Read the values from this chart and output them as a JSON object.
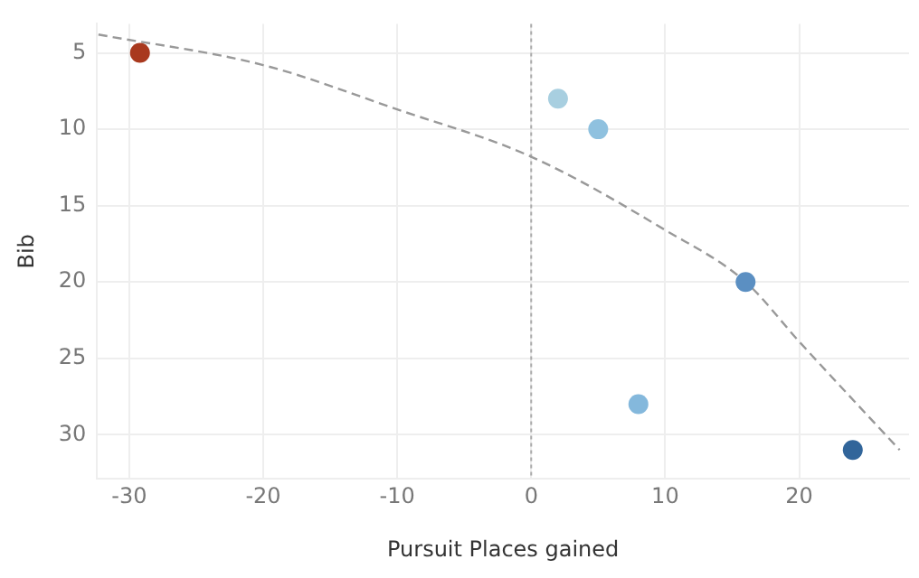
{
  "chart_data": {
    "type": "scatter",
    "xlabel": "Pursuit Places gained",
    "ylabel": "Bib",
    "xlim": [
      -32.4,
      28.2
    ],
    "xticks": [
      -30,
      -20,
      -10,
      0,
      10,
      20
    ],
    "ylim": [
      32.9,
      3.1
    ],
    "yticks": [
      5,
      10,
      15,
      20,
      25,
      30
    ],
    "grid": true,
    "legend": false,
    "marker": "circle",
    "series": [
      {
        "type": "line",
        "color": "#999999",
        "line_style": "dashed",
        "marker": "none",
        "x": [
          -32.3,
          -20,
          -10,
          0,
          10,
          16,
          20,
          27.5
        ],
        "values": [
          3.8,
          5.8,
          8.7,
          11.8,
          16.6,
          20,
          23.9,
          31
        ]
      },
      {
        "x": [
          -29.2,
          2,
          5,
          16,
          8,
          24
        ],
        "values": [
          5,
          8,
          10,
          20,
          28,
          31
        ],
        "colors": [
          "#a9391e",
          "#a8cfe0",
          "#8fc1df",
          "#5b8fc2",
          "#84b8dc",
          "#31659a"
        ]
      }
    ],
    "ref_lines": [
      {
        "axis": "x",
        "value": 0,
        "color": "#aaaaaa",
        "line_style": "dotted"
      }
    ]
  }
}
